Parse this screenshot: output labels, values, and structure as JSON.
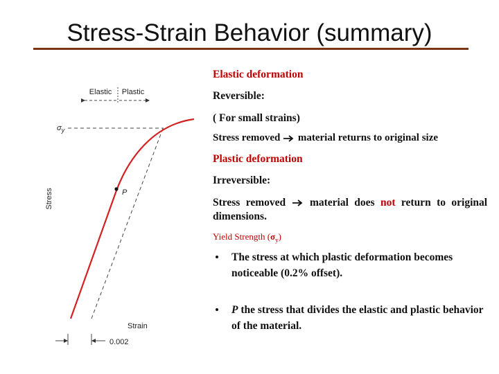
{
  "header": {
    "title": "Stress-Strain Behavior (summary)"
  },
  "diagram": {
    "elastic": "Elastic",
    "plastic": "Plastic",
    "sigma": "σ",
    "sigma_sub": "y",
    "point": "P",
    "y_axis": "Stress",
    "x_axis": "Strain",
    "offset": "0.002"
  },
  "text": {
    "elastic_heading": "Elastic deformation",
    "reversible": "Reversible:",
    "small_strains": "( For small strains)",
    "elastic_removed": {
      "before": "Stress removed",
      "after": "material returns to  original size"
    },
    "plastic_heading": "Plastic deformation",
    "irreversible": "Irreversible:",
    "plastic_removed": {
      "before": "Stress removed",
      "middle": "material does",
      "not": "not",
      "after": "return to original dimensions."
    },
    "yield": {
      "prefix": "Yield Strength (",
      "symbol": "σ",
      "sub": "y",
      "suffix": ")"
    },
    "bullets": [
      {
        "text": "The stress at which plastic deformation becomes noticeable (0.2% offset)."
      },
      {
        "lead": "P",
        "text": "the stress that divides the elastic and plastic behavior of the material."
      }
    ]
  }
}
